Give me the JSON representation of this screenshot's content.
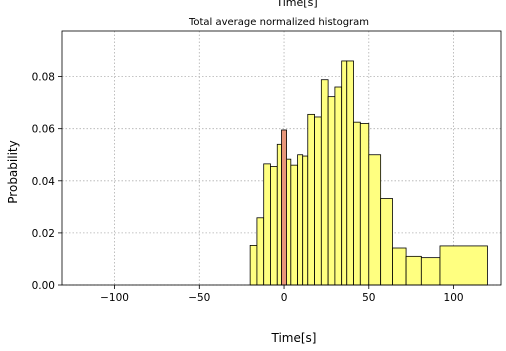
{
  "top_cut_label": "Time[s]",
  "chart_data": {
    "type": "bar",
    "title": "Total average normalized histogram",
    "xlabel": "Time[s]",
    "ylabel": "Probability",
    "xlim": [
      -131,
      128
    ],
    "ylim": [
      0,
      0.0975
    ],
    "grid": true,
    "x_ticks": [
      -100,
      -50,
      0,
      50,
      100
    ],
    "x_tick_labels": [
      "−100",
      "−50",
      "0",
      "50",
      "100"
    ],
    "y_ticks": [
      0.0,
      0.02,
      0.04,
      0.06,
      0.08
    ],
    "y_tick_labels": [
      "0.00",
      "0.02",
      "0.04",
      "0.06",
      "0.08"
    ],
    "colors": {
      "main": "#ffff80",
      "highlight": "#e8967a",
      "edge": "#000000",
      "grid": "#b0b0b0"
    },
    "bins": [
      {
        "x0": -20,
        "x1": -16,
        "y": 0.0152
      },
      {
        "x0": -16,
        "x1": -12,
        "y": 0.0258
      },
      {
        "x0": -12,
        "x1": -8,
        "y": 0.0465
      },
      {
        "x0": -8,
        "x1": -4,
        "y": 0.0455
      },
      {
        "x0": -4,
        "x1": -1.5,
        "y": 0.054
      },
      {
        "x0": 1.5,
        "x1": 4,
        "y": 0.0483
      },
      {
        "x0": 4,
        "x1": 8,
        "y": 0.046
      },
      {
        "x0": 8,
        "x1": 11,
        "y": 0.05
      },
      {
        "x0": 11,
        "x1": 14,
        "y": 0.0495
      },
      {
        "x0": 14,
        "x1": 18,
        "y": 0.0655
      },
      {
        "x0": 18,
        "x1": 22,
        "y": 0.0645
      },
      {
        "x0": 22,
        "x1": 26,
        "y": 0.0788
      },
      {
        "x0": 26,
        "x1": 30,
        "y": 0.0723
      },
      {
        "x0": 30,
        "x1": 34,
        "y": 0.076
      },
      {
        "x0": 34,
        "x1": 37,
        "y": 0.086
      },
      {
        "x0": 37,
        "x1": 41,
        "y": 0.086
      },
      {
        "x0": 41,
        "x1": 45,
        "y": 0.0625
      },
      {
        "x0": 45,
        "x1": 50,
        "y": 0.062
      },
      {
        "x0": 50,
        "x1": 57,
        "y": 0.05
      },
      {
        "x0": 57,
        "x1": 64,
        "y": 0.0332
      },
      {
        "x0": 64,
        "x1": 72,
        "y": 0.0142
      },
      {
        "x0": 72,
        "x1": 81,
        "y": 0.011
      },
      {
        "x0": 81,
        "x1": 92,
        "y": 0.0105
      },
      {
        "x0": 92,
        "x1": 120,
        "y": 0.015
      }
    ],
    "highlight_bin": {
      "x0": -1.5,
      "x1": 1.5,
      "y": 0.0595
    }
  }
}
